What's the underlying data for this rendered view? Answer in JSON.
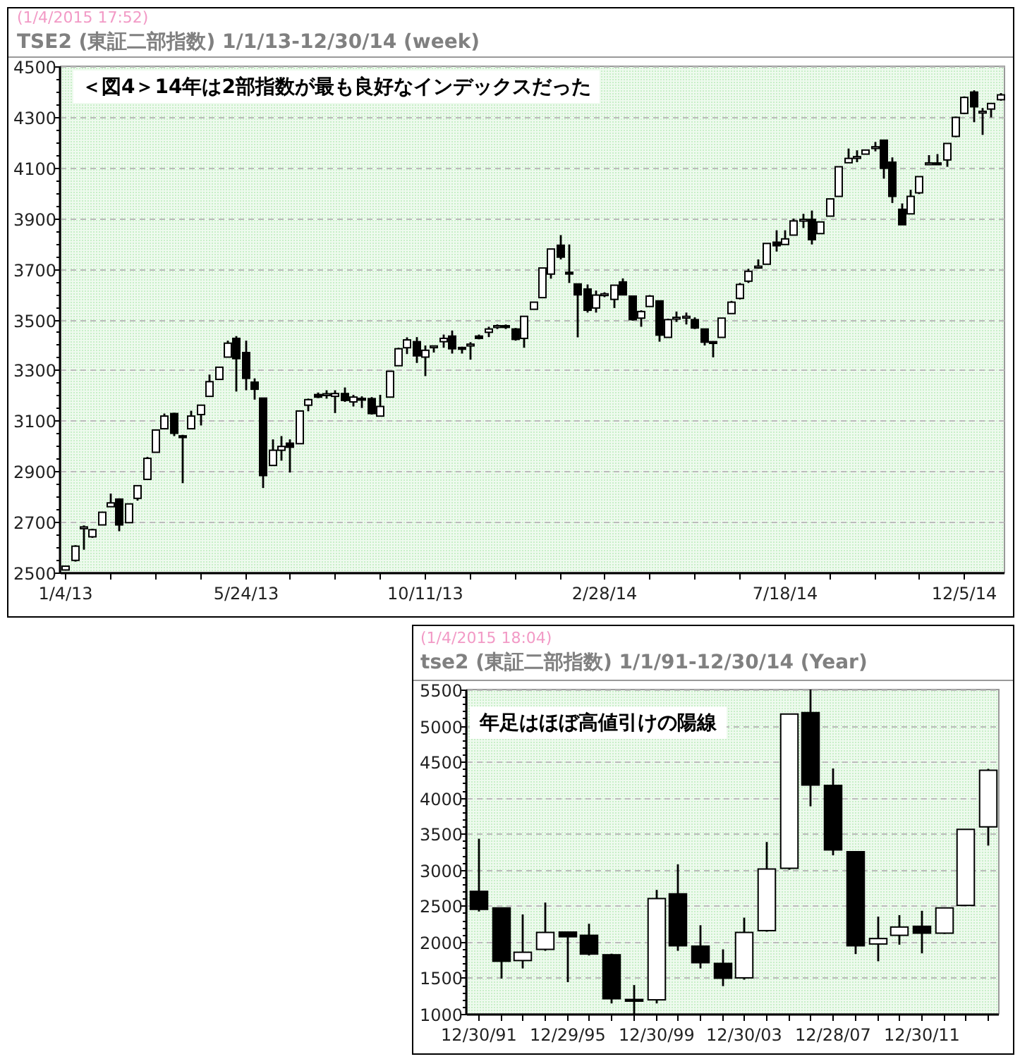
{
  "chart_data": [
    {
      "type": "candlestick",
      "subtitle": "(1/4/2015 17:52)",
      "title": "TSE2 (東証二部指数)  1/1/13-12/30/14 (week)",
      "annotations": [
        "＜図4＞14年は2部指数が最も良好なインデックスだった"
      ],
      "grid": "y",
      "ylim": [
        2500,
        4500
      ],
      "yticks": [
        2500,
        2700,
        2900,
        3100,
        3300,
        3500,
        3700,
        3900,
        4100,
        4300,
        4500
      ],
      "categories": [
        "1/4/13",
        null,
        null,
        null,
        null,
        null,
        null,
        null,
        null,
        null,
        null,
        null,
        null,
        null,
        null,
        null,
        null,
        null,
        null,
        null,
        "5/24/13",
        null,
        null,
        null,
        null,
        null,
        null,
        null,
        null,
        null,
        null,
        null,
        null,
        null,
        null,
        null,
        null,
        null,
        null,
        null,
        "10/11/13",
        null,
        null,
        null,
        null,
        null,
        null,
        null,
        null,
        null,
        null,
        null,
        null,
        null,
        null,
        null,
        null,
        null,
        null,
        null,
        "2/28/14",
        null,
        null,
        null,
        null,
        null,
        null,
        null,
        null,
        null,
        null,
        null,
        null,
        null,
        null,
        null,
        null,
        null,
        null,
        null,
        "7/18/14",
        null,
        null,
        null,
        null,
        null,
        null,
        null,
        null,
        null,
        null,
        null,
        null,
        null,
        null,
        null,
        null,
        null,
        null,
        null,
        "12/5/14",
        null,
        null,
        null,
        null
      ],
      "ohlc": [
        [
          2510,
          2525,
          2508,
          2525
        ],
        [
          2548,
          2608,
          2543,
          2604
        ],
        [
          2675,
          2686,
          2590,
          2680
        ],
        [
          2641,
          2673,
          2637,
          2669
        ],
        [
          2688,
          2740,
          2688,
          2738
        ],
        [
          2760,
          2812,
          2760,
          2775
        ],
        [
          2790,
          2793,
          2663,
          2688
        ],
        [
          2697,
          2771,
          2697,
          2771
        ],
        [
          2793,
          2843,
          2784,
          2843
        ],
        [
          2868,
          2957,
          2868,
          2951
        ],
        [
          2975,
          3063,
          2975,
          3063
        ],
        [
          3068,
          3128,
          3068,
          3118
        ],
        [
          3128,
          3131,
          3039,
          3050
        ],
        [
          3040,
          3044,
          2853,
          3038
        ],
        [
          3068,
          3139,
          3068,
          3118
        ],
        [
          3124,
          3161,
          3081,
          3161
        ],
        [
          3196,
          3282,
          3196,
          3254
        ],
        [
          3263,
          3311,
          3263,
          3311
        ],
        [
          3351,
          3416,
          3351,
          3406
        ],
        [
          3425,
          3434,
          3215,
          3345
        ],
        [
          3369,
          3416,
          3220,
          3267
        ],
        [
          3252,
          3267,
          3183,
          3224
        ],
        [
          3189,
          3189,
          2834,
          2883
        ],
        [
          2923,
          3026,
          2923,
          2983
        ],
        [
          2983,
          3039,
          2942,
          2998
        ],
        [
          3011,
          3026,
          2895,
          2995
        ],
        [
          3009,
          3138,
          3009,
          3138
        ],
        [
          3161,
          3187,
          3137,
          3183
        ],
        [
          3203,
          3211,
          3189,
          3193
        ],
        [
          3204,
          3220,
          3187,
          3206
        ],
        [
          3196,
          3220,
          3130,
          3207
        ],
        [
          3207,
          3231,
          3174,
          3180
        ],
        [
          3174,
          3202,
          3156,
          3193
        ],
        [
          3188,
          3196,
          3150,
          3186
        ],
        [
          3187,
          3193,
          3124,
          3128
        ],
        [
          3118,
          3202,
          3118,
          3156
        ],
        [
          3193,
          3295,
          3193,
          3295
        ],
        [
          3317,
          3388,
          3317,
          3384
        ],
        [
          3388,
          3429,
          3363,
          3419
        ],
        [
          3412,
          3430,
          3328,
          3356
        ],
        [
          3351,
          3397,
          3276,
          3378
        ],
        [
          3393,
          3397,
          3369,
          3395
        ],
        [
          3412,
          3440,
          3388,
          3425
        ],
        [
          3434,
          3456,
          3365,
          3384
        ],
        [
          3389,
          3392,
          3365,
          3388
        ],
        [
          3401,
          3410,
          3341,
          3402
        ],
        [
          3434,
          3440,
          3421,
          3425
        ],
        [
          3449,
          3471,
          3430,
          3462
        ],
        [
          3474,
          3480,
          3462,
          3475
        ],
        [
          3475,
          3480,
          3462,
          3474
        ],
        [
          3462,
          3466,
          3416,
          3421
        ],
        [
          3425,
          3512,
          3388,
          3512
        ],
        [
          3540,
          3568,
          3540,
          3568
        ],
        [
          3586,
          3703,
          3586,
          3703
        ],
        [
          3679,
          3778,
          3661,
          3778
        ],
        [
          3793,
          3833,
          3737,
          3746
        ],
        [
          3686,
          3796,
          3644,
          3684
        ],
        [
          3640,
          3640,
          3429,
          3597
        ],
        [
          3620,
          3638,
          3527,
          3536
        ],
        [
          3545,
          3614,
          3527,
          3596
        ],
        [
          3600,
          3607,
          3588,
          3601
        ],
        [
          3579,
          3635,
          3545,
          3635
        ],
        [
          3648,
          3662,
          3597,
          3597
        ],
        [
          3592,
          3592,
          3495,
          3499
        ],
        [
          3505,
          3536,
          3471,
          3531
        ],
        [
          3551,
          3596,
          3551,
          3592
        ],
        [
          3573,
          3573,
          3412,
          3438
        ],
        [
          3429,
          3503,
          3429,
          3499
        ],
        [
          3507,
          3531,
          3490,
          3508
        ],
        [
          3511,
          3527,
          3480,
          3512
        ],
        [
          3499,
          3508,
          3462,
          3466
        ],
        [
          3462,
          3462,
          3397,
          3410
        ],
        [
          3412,
          3414,
          3350,
          3410
        ],
        [
          3429,
          3505,
          3429,
          3505
        ],
        [
          3523,
          3573,
          3523,
          3568
        ],
        [
          3583,
          3644,
          3579,
          3638
        ],
        [
          3651,
          3700,
          3644,
          3690
        ],
        [
          3708,
          3737,
          3700,
          3710
        ],
        [
          3718,
          3800,
          3718,
          3800
        ],
        [
          3805,
          3852,
          3768,
          3791
        ],
        [
          3796,
          3852,
          3796,
          3818
        ],
        [
          3833,
          3898,
          3833,
          3889
        ],
        [
          3894,
          3917,
          3861,
          3895
        ],
        [
          3895,
          3930,
          3796,
          3815
        ],
        [
          3839,
          3885,
          3839,
          3885
        ],
        [
          3908,
          3976,
          3908,
          3976
        ],
        [
          3986,
          4103,
          3986,
          4103
        ],
        [
          4119,
          4175,
          4119,
          4136
        ],
        [
          4142,
          4168,
          4121,
          4143
        ],
        [
          4153,
          4169,
          4153,
          4169
        ],
        [
          4181,
          4201,
          4164,
          4182
        ],
        [
          4208,
          4208,
          4056,
          4097
        ],
        [
          4121,
          4140,
          3960,
          3986
        ],
        [
          3935,
          3958,
          3874,
          3874
        ],
        [
          3917,
          4012,
          3917,
          3986
        ],
        [
          4000,
          4064,
          3995,
          4064
        ],
        [
          4116,
          4149,
          4112,
          4118
        ],
        [
          4118,
          4153,
          4112,
          4116
        ],
        [
          4130,
          4195,
          4103,
          4195
        ],
        [
          4223,
          4301,
          4220,
          4298
        ],
        [
          4314,
          4381,
          4311,
          4377
        ],
        [
          4398,
          4405,
          4279,
          4340
        ],
        [
          4322,
          4335,
          4229,
          4322
        ],
        [
          4331,
          4353,
          4298,
          4353
        ],
        [
          4368,
          4394,
          4364,
          4387
        ]
      ]
    },
    {
      "type": "candlestick",
      "subtitle": "(1/4/2015 18:04)",
      "title": "tse2 (東証二部指数)  1/1/91-12/30/14 (Year)",
      "annotations": [
        "年足はほぼ高値引けの陽線"
      ],
      "grid": "y",
      "ylim": [
        1000,
        5500
      ],
      "yticks": [
        1000,
        1500,
        2000,
        2500,
        3000,
        3500,
        4000,
        4500,
        5000,
        5500
      ],
      "categories": [
        "12/30/91",
        null,
        null,
        null,
        "12/29/95",
        null,
        null,
        null,
        "12/30/99",
        null,
        null,
        null,
        "12/30/03",
        null,
        null,
        null,
        "12/28/07",
        null,
        null,
        null,
        "12/30/11",
        null,
        null,
        null
      ],
      "ohlc": [
        [
          2700,
          3430,
          2420,
          2450
        ],
        [
          2470,
          2470,
          1490,
          1730
        ],
        [
          1740,
          2380,
          1630,
          1855
        ],
        [
          1895,
          2545,
          1875,
          2130
        ],
        [
          2135,
          2135,
          1440,
          2070
        ],
        [
          2090,
          2250,
          1810,
          1830
        ],
        [
          1820,
          1835,
          1145,
          1210
        ],
        [
          1200,
          1400,
          1000,
          1190
        ],
        [
          1195,
          2720,
          1145,
          2600
        ],
        [
          2665,
          3075,
          1875,
          1945
        ],
        [
          1940,
          2230,
          1630,
          1710
        ],
        [
          1700,
          1895,
          1385,
          1495
        ],
        [
          1500,
          2335,
          1475,
          2130
        ],
        [
          2155,
          3385,
          2140,
          3010
        ],
        [
          3020,
          5160,
          3000,
          5160
        ],
        [
          5180,
          5500,
          3880,
          4175
        ],
        [
          4170,
          4405,
          3200,
          3275
        ],
        [
          3250,
          3250,
          1830,
          1945
        ],
        [
          1970,
          2350,
          1730,
          2045
        ],
        [
          2090,
          2370,
          1960,
          2205
        ],
        [
          2215,
          2430,
          1840,
          2120
        ],
        [
          2120,
          2470,
          2110,
          2470
        ],
        [
          2505,
          3560,
          2495,
          3560
        ],
        [
          3595,
          4400,
          3335,
          4380
        ]
      ]
    }
  ]
}
